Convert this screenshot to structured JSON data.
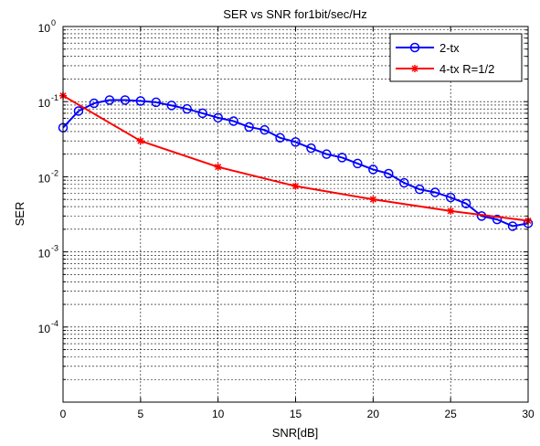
{
  "chart_data": {
    "type": "line",
    "title": "SER vs SNR for1bit/sec/Hz",
    "xlabel": "SNR[dB]",
    "ylabel": "SER",
    "xlim": [
      0,
      30
    ],
    "ylim": [
      1e-05,
      1
    ],
    "yscale": "log",
    "grid": true,
    "legend_position": "top-right",
    "x_ticks": [
      "0",
      "5",
      "10",
      "15",
      "20",
      "25",
      "30"
    ],
    "y_ticks": [
      {
        "base": "10",
        "exp": "0"
      },
      {
        "base": "10",
        "exp": "-1"
      },
      {
        "base": "10",
        "exp": "-2"
      },
      {
        "base": "10",
        "exp": "-3"
      },
      {
        "base": "10",
        "exp": "-4"
      }
    ],
    "series": [
      {
        "name": "2-tx",
        "color": "#0000ff",
        "marker": "circle",
        "x": [
          0,
          1,
          2,
          3,
          4,
          5,
          6,
          7,
          8,
          9,
          10,
          11,
          12,
          13,
          14,
          15,
          16,
          17,
          18,
          19,
          20,
          21,
          22,
          23,
          24,
          25,
          26,
          27,
          28,
          29,
          30
        ],
        "y": [
          0.045,
          0.075,
          0.095,
          0.105,
          0.105,
          0.102,
          0.098,
          0.089,
          0.08,
          0.07,
          0.061,
          0.055,
          0.046,
          0.042,
          0.033,
          0.029,
          0.024,
          0.02,
          0.018,
          0.015,
          0.0125,
          0.011,
          0.0083,
          0.0068,
          0.0062,
          0.0053,
          0.0044,
          0.003,
          0.0027,
          0.0022,
          0.0024
        ]
      },
      {
        "name": "4-tx R=1/2",
        "color": "#ff0000",
        "marker": "star",
        "x": [
          0,
          5,
          10,
          15,
          20,
          25,
          30
        ],
        "y": [
          0.12,
          0.03,
          0.0135,
          0.0075,
          0.005,
          0.0035,
          0.0026
        ]
      }
    ]
  }
}
